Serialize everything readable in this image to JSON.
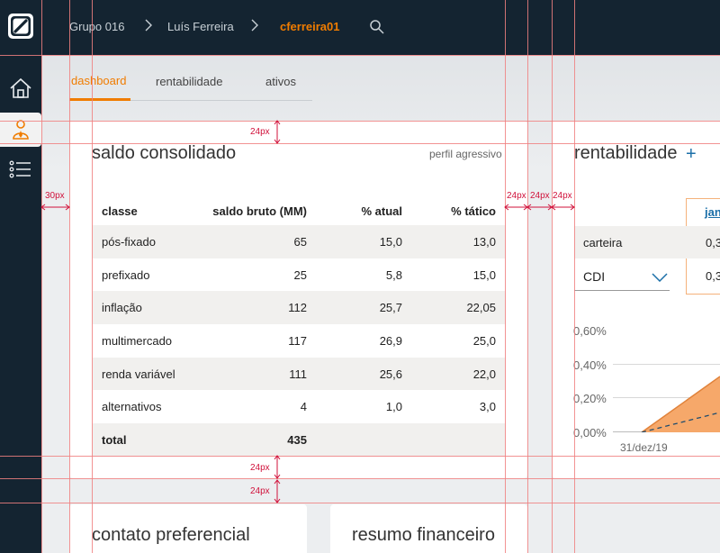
{
  "topbar": {
    "breadcrumb": [
      "Grupo 016",
      "Luís Ferreira",
      "cferreira01"
    ]
  },
  "tabs": [
    "dashboard",
    "rentabilidade",
    "ativos"
  ],
  "saldo": {
    "title": "saldo consolidado",
    "profile": "perfil agressivo",
    "columns": [
      "classe",
      "saldo bruto (MM)",
      "% atual",
      "% tático"
    ],
    "rows": [
      [
        "pós-fixado",
        "65",
        "15,0",
        "13,0"
      ],
      [
        "prefixado",
        "25",
        "5,8",
        "15,0"
      ],
      [
        "inflação",
        "112",
        "25,7",
        "22,05"
      ],
      [
        "multimercado",
        "117",
        "26,9",
        "25,0"
      ],
      [
        "renda variável",
        "111",
        "25,6",
        "22,0"
      ],
      [
        "alternativos",
        "4",
        "1,0",
        "3,0"
      ],
      [
        "total",
        "435",
        "",
        ""
      ]
    ]
  },
  "rentabilidade": {
    "title": "rentabilidade",
    "plus": "+",
    "column_head": "jan",
    "rows": [
      {
        "label": "carteira",
        "value": "0,3"
      },
      {
        "label": "CDI",
        "value": "0,3"
      }
    ],
    "y_ticks": [
      "0,60%",
      "0,40%",
      "0,20%",
      "0,00%"
    ],
    "x_tick": "31/dez/19"
  },
  "bottom": {
    "contato": "contato preferencial",
    "resumo": "resumo financeiro"
  },
  "dimensions": [
    "24px",
    "30px",
    "24px",
    "24px",
    "24px",
    "24px",
    "24px"
  ],
  "colors": {
    "topbar": "#142431",
    "accent": "#f07c00",
    "link": "#1b6fa8",
    "guide": "#f08080",
    "dimension": "#d0103a"
  }
}
